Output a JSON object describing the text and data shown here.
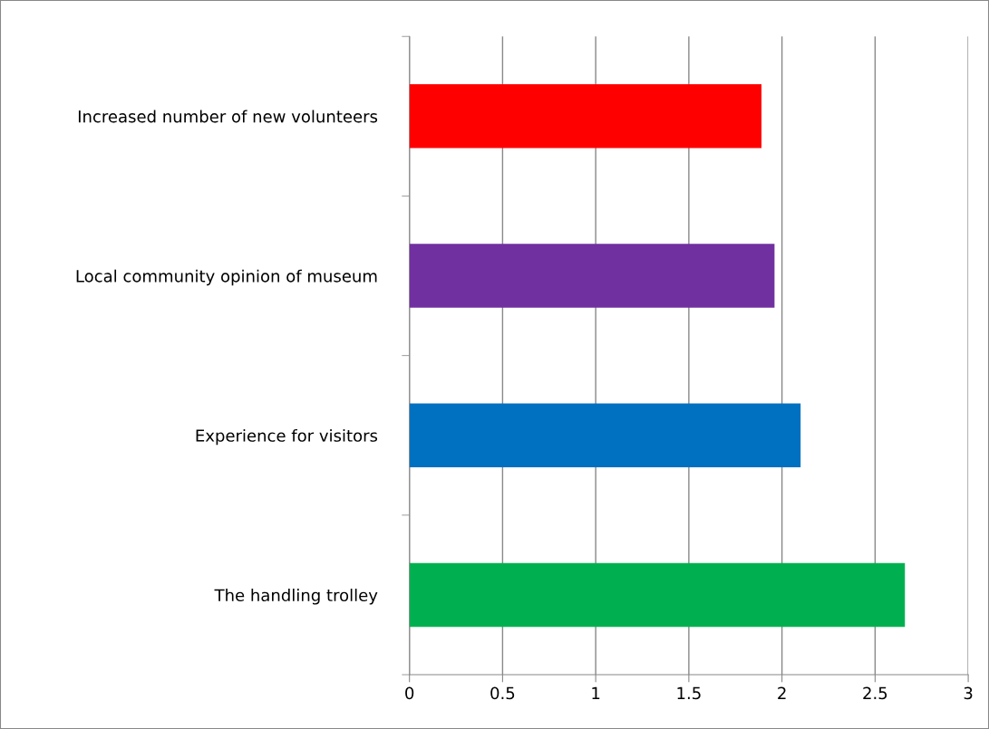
{
  "chart_data": {
    "type": "bar",
    "orientation": "horizontal",
    "categories": [
      "Increased number of new volunteers",
      "Local community opinion of museum",
      "Experience for visitors",
      "The handling trolley"
    ],
    "values": [
      1.89,
      1.96,
      2.1,
      2.66
    ],
    "colors": [
      "#ff0000",
      "#7030a0",
      "#0070c0",
      "#00b050"
    ],
    "xlim": [
      0,
      3
    ],
    "xticks": [
      0,
      0.5,
      1,
      1.5,
      2,
      2.5,
      3
    ],
    "grid": "x",
    "legend": false
  }
}
